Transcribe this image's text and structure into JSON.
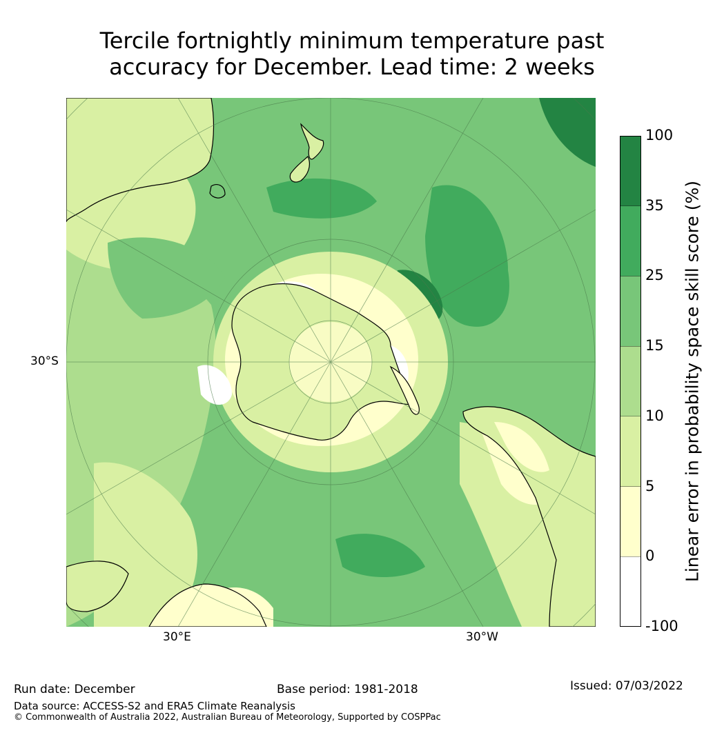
{
  "title_line1": "Tercile fortnightly minimum temperature past",
  "title_line2": "accuracy for December. Lead time: 2 weeks",
  "map_labels": {
    "lat_30s": "30°S",
    "lon_30e": "30°E",
    "lon_30w": "30°W"
  },
  "colorbar": {
    "title": "Linear error in probability space skill score (%)",
    "ticks": [
      "-100",
      "0",
      "5",
      "10",
      "15",
      "25",
      "35",
      "100"
    ],
    "colors": [
      "#ffffff",
      "#ffffcc",
      "#d9f0a3",
      "#addd8e",
      "#78c679",
      "#41ab5d",
      "#238443"
    ]
  },
  "footer": {
    "run_date": "Run date: December",
    "base_period": "Base period: 1981-2018",
    "issued": "Issued: 07/03/2022",
    "data_source": "Data source: ACCESS-S2 and ERA5 Climate Reanalysis",
    "copyright": "© Commonwealth of Australia 2022, Australian Bureau of Meteorology, Supported by COSPPac"
  }
}
